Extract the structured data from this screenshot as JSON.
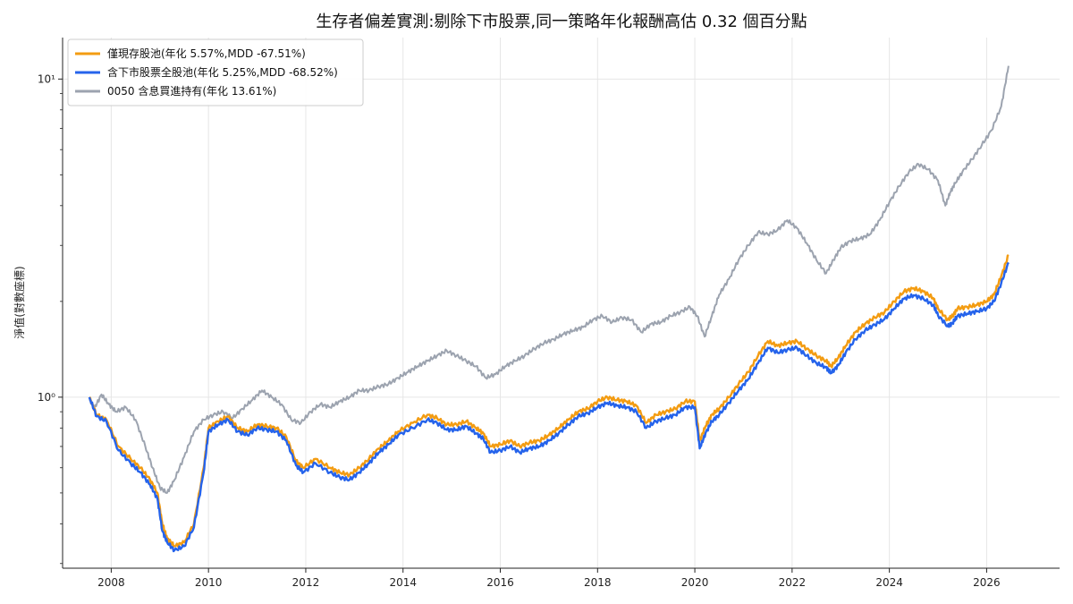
{
  "chart_data": {
    "type": "line",
    "title": "生存者偏差實測:剔除下市股票,同一策略年化報酬高估 0.32 個百分點",
    "xlabel": "",
    "ylabel": "淨值(對數座標)",
    "y_scale": "log",
    "xlim": [
      2007.0,
      2027.5
    ],
    "ylim": [
      0.29,
      13.5
    ],
    "x_ticks": [
      2008,
      2010,
      2012,
      2014,
      2016,
      2018,
      2020,
      2022,
      2024,
      2026
    ],
    "x_tick_labels": [
      "2008",
      "2010",
      "2012",
      "2014",
      "2016",
      "2018",
      "2020",
      "2022",
      "2024",
      "2026"
    ],
    "y_ticks": [
      1,
      10
    ],
    "y_tick_labels": [
      "10⁰",
      "10¹"
    ],
    "grid": true,
    "legend_position": "top-left",
    "series": [
      {
        "name": "僅現存股池(年化 5.57%,MDD -67.51%)",
        "color": "#f39c12",
        "x": [
          2007.55,
          2007.7,
          2007.9,
          2008.15,
          2008.4,
          2008.6,
          2008.8,
          2008.95,
          2009.05,
          2009.15,
          2009.3,
          2009.5,
          2009.7,
          2009.9,
          2010.0,
          2010.2,
          2010.4,
          2010.6,
          2010.8,
          2011.0,
          2011.2,
          2011.4,
          2011.6,
          2011.8,
          2011.95,
          2012.2,
          2012.5,
          2012.7,
          2012.9,
          2013.1,
          2013.3,
          2013.5,
          2013.7,
          2013.9,
          2014.2,
          2014.5,
          2014.7,
          2014.9,
          2015.1,
          2015.3,
          2015.5,
          2015.65,
          2015.8,
          2016.0,
          2016.2,
          2016.4,
          2016.6,
          2016.8,
          2017.0,
          2017.2,
          2017.4,
          2017.6,
          2017.8,
          2018.0,
          2018.2,
          2018.4,
          2018.6,
          2018.8,
          2019.0,
          2019.2,
          2019.4,
          2019.6,
          2019.8,
          2020.0,
          2020.1,
          2020.22,
          2020.35,
          2020.5,
          2020.7,
          2020.9,
          2021.1,
          2021.3,
          2021.5,
          2021.7,
          2021.9,
          2022.1,
          2022.3,
          2022.5,
          2022.7,
          2022.8,
          2022.95,
          2023.1,
          2023.3,
          2023.5,
          2023.7,
          2023.9,
          2024.1,
          2024.3,
          2024.5,
          2024.7,
          2024.9,
          2025.0,
          2025.2,
          2025.3,
          2025.4,
          2025.6,
          2025.8,
          2026.0,
          2026.15,
          2026.3,
          2026.45
        ],
        "values": [
          1.0,
          0.88,
          0.85,
          0.7,
          0.64,
          0.6,
          0.55,
          0.5,
          0.4,
          0.36,
          0.34,
          0.35,
          0.4,
          0.6,
          0.8,
          0.84,
          0.87,
          0.8,
          0.78,
          0.82,
          0.81,
          0.8,
          0.75,
          0.63,
          0.6,
          0.64,
          0.6,
          0.58,
          0.57,
          0.6,
          0.64,
          0.69,
          0.73,
          0.78,
          0.83,
          0.88,
          0.86,
          0.82,
          0.82,
          0.84,
          0.8,
          0.77,
          0.7,
          0.71,
          0.73,
          0.7,
          0.72,
          0.73,
          0.76,
          0.8,
          0.85,
          0.9,
          0.92,
          0.97,
          1.0,
          0.98,
          0.97,
          0.94,
          0.83,
          0.88,
          0.9,
          0.92,
          0.97,
          0.97,
          0.73,
          0.81,
          0.88,
          0.92,
          1.0,
          1.1,
          1.2,
          1.35,
          1.5,
          1.45,
          1.48,
          1.5,
          1.42,
          1.35,
          1.3,
          1.25,
          1.33,
          1.45,
          1.6,
          1.7,
          1.78,
          1.85,
          2.0,
          2.15,
          2.2,
          2.15,
          2.05,
          1.9,
          1.75,
          1.8,
          1.9,
          1.92,
          1.95,
          2.0,
          2.1,
          2.4,
          2.8
        ]
      },
      {
        "name": "含下市股票全股池(年化 5.25%,MDD -68.52%)",
        "color": "#2563eb",
        "x": [
          2007.55,
          2007.7,
          2007.9,
          2008.15,
          2008.4,
          2008.6,
          2008.8,
          2008.95,
          2009.05,
          2009.15,
          2009.3,
          2009.5,
          2009.7,
          2009.9,
          2010.0,
          2010.2,
          2010.4,
          2010.6,
          2010.8,
          2011.0,
          2011.2,
          2011.4,
          2011.6,
          2011.8,
          2011.95,
          2012.2,
          2012.5,
          2012.7,
          2012.9,
          2013.1,
          2013.3,
          2013.5,
          2013.7,
          2013.9,
          2014.2,
          2014.5,
          2014.7,
          2014.9,
          2015.1,
          2015.3,
          2015.5,
          2015.65,
          2015.8,
          2016.0,
          2016.2,
          2016.4,
          2016.6,
          2016.8,
          2017.0,
          2017.2,
          2017.4,
          2017.6,
          2017.8,
          2018.0,
          2018.2,
          2018.4,
          2018.6,
          2018.8,
          2019.0,
          2019.2,
          2019.4,
          2019.6,
          2019.8,
          2020.0,
          2020.1,
          2020.22,
          2020.35,
          2020.5,
          2020.7,
          2020.9,
          2021.1,
          2021.3,
          2021.5,
          2021.7,
          2021.9,
          2022.1,
          2022.3,
          2022.5,
          2022.7,
          2022.8,
          2022.95,
          2023.1,
          2023.3,
          2023.5,
          2023.7,
          2023.9,
          2024.1,
          2024.3,
          2024.5,
          2024.7,
          2024.9,
          2025.0,
          2025.2,
          2025.3,
          2025.4,
          2025.6,
          2025.8,
          2026.0,
          2026.15,
          2026.3,
          2026.45
        ],
        "values": [
          1.0,
          0.87,
          0.84,
          0.68,
          0.62,
          0.58,
          0.53,
          0.48,
          0.38,
          0.35,
          0.33,
          0.34,
          0.39,
          0.58,
          0.78,
          0.82,
          0.85,
          0.78,
          0.76,
          0.8,
          0.79,
          0.78,
          0.73,
          0.61,
          0.58,
          0.62,
          0.58,
          0.56,
          0.55,
          0.58,
          0.62,
          0.67,
          0.71,
          0.76,
          0.8,
          0.85,
          0.83,
          0.79,
          0.79,
          0.81,
          0.77,
          0.74,
          0.67,
          0.68,
          0.7,
          0.67,
          0.69,
          0.7,
          0.73,
          0.77,
          0.82,
          0.87,
          0.89,
          0.93,
          0.96,
          0.94,
          0.93,
          0.9,
          0.8,
          0.84,
          0.86,
          0.88,
          0.93,
          0.93,
          0.69,
          0.77,
          0.84,
          0.88,
          0.96,
          1.05,
          1.14,
          1.28,
          1.43,
          1.38,
          1.41,
          1.43,
          1.35,
          1.28,
          1.24,
          1.19,
          1.26,
          1.38,
          1.52,
          1.62,
          1.69,
          1.76,
          1.9,
          2.04,
          2.09,
          2.04,
          1.95,
          1.81,
          1.67,
          1.71,
          1.8,
          1.83,
          1.86,
          1.9,
          2.0,
          2.28,
          2.65
        ]
      },
      {
        "name": "0050 含息買進持有(年化 13.61%)",
        "color": "#9ca3af",
        "x": [
          2007.55,
          2007.65,
          2007.8,
          2007.95,
          2008.1,
          2008.3,
          2008.5,
          2008.7,
          2008.85,
          2009.0,
          2009.15,
          2009.3,
          2009.5,
          2009.7,
          2009.9,
          2010.1,
          2010.3,
          2010.5,
          2010.7,
          2010.9,
          2011.1,
          2011.3,
          2011.5,
          2011.7,
          2011.9,
          2012.1,
          2012.3,
          2012.5,
          2012.7,
          2012.9,
          2013.1,
          2013.3,
          2013.5,
          2013.7,
          2013.9,
          2014.1,
          2014.3,
          2014.5,
          2014.7,
          2014.9,
          2015.1,
          2015.3,
          2015.5,
          2015.7,
          2015.9,
          2016.1,
          2016.3,
          2016.5,
          2016.7,
          2016.9,
          2017.1,
          2017.3,
          2017.5,
          2017.7,
          2017.9,
          2018.1,
          2018.3,
          2018.5,
          2018.7,
          2018.9,
          2019.1,
          2019.3,
          2019.5,
          2019.7,
          2019.9,
          2020.05,
          2020.2,
          2020.35,
          2020.5,
          2020.7,
          2020.9,
          2021.1,
          2021.3,
          2021.5,
          2021.7,
          2021.9,
          2022.1,
          2022.3,
          2022.5,
          2022.7,
          2022.85,
          2023.0,
          2023.2,
          2023.4,
          2023.6,
          2023.8,
          2024.0,
          2024.2,
          2024.4,
          2024.6,
          2024.8,
          2025.0,
          2025.15,
          2025.25,
          2025.35,
          2025.5,
          2025.7,
          2025.9,
          2026.1,
          2026.3,
          2026.45
        ],
        "values": [
          1.0,
          0.92,
          1.02,
          0.95,
          0.9,
          0.93,
          0.85,
          0.7,
          0.6,
          0.52,
          0.5,
          0.55,
          0.65,
          0.78,
          0.85,
          0.88,
          0.9,
          0.86,
          0.92,
          0.98,
          1.05,
          1.0,
          0.95,
          0.85,
          0.83,
          0.9,
          0.95,
          0.93,
          0.97,
          1.0,
          1.05,
          1.05,
          1.08,
          1.1,
          1.15,
          1.2,
          1.25,
          1.3,
          1.35,
          1.4,
          1.35,
          1.3,
          1.25,
          1.15,
          1.18,
          1.25,
          1.3,
          1.35,
          1.42,
          1.48,
          1.52,
          1.58,
          1.62,
          1.66,
          1.75,
          1.8,
          1.72,
          1.78,
          1.75,
          1.6,
          1.7,
          1.72,
          1.8,
          1.85,
          1.92,
          1.8,
          1.55,
          1.8,
          2.1,
          2.35,
          2.7,
          3.0,
          3.3,
          3.25,
          3.35,
          3.6,
          3.4,
          3.05,
          2.7,
          2.45,
          2.7,
          2.95,
          3.1,
          3.15,
          3.25,
          3.6,
          4.1,
          4.6,
          5.1,
          5.4,
          5.2,
          4.8,
          4.0,
          4.4,
          4.7,
          5.1,
          5.6,
          6.2,
          6.9,
          8.2,
          11.0
        ]
      }
    ]
  }
}
